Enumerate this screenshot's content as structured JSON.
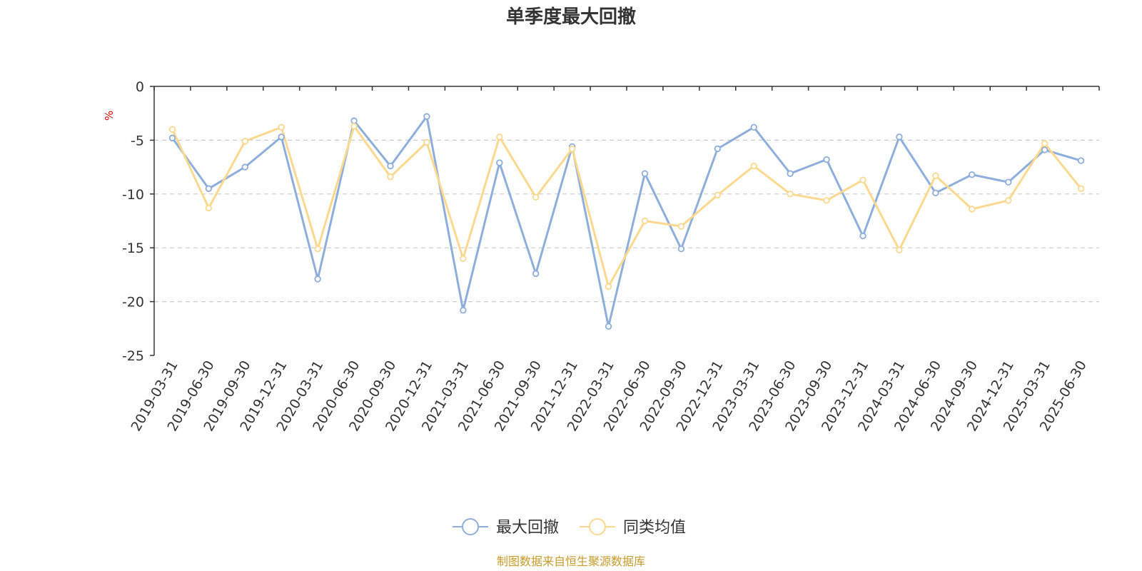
{
  "chart_data": {
    "type": "line",
    "title": "单季度最大回撤",
    "ylabel": "%",
    "ylim": [
      -25,
      0
    ],
    "yticks": [
      0,
      -5,
      -10,
      -15,
      -20,
      -25
    ],
    "grid": true,
    "legend_position": "bottom",
    "categories": [
      "2019-03-31",
      "2019-06-30",
      "2019-09-30",
      "2019-12-31",
      "2020-03-31",
      "2020-06-30",
      "2020-09-30",
      "2020-12-31",
      "2021-03-31",
      "2021-06-30",
      "2021-09-30",
      "2021-12-31",
      "2022-03-31",
      "2022-06-30",
      "2022-09-30",
      "2022-12-31",
      "2023-03-31",
      "2023-06-30",
      "2023-09-30",
      "2023-12-31",
      "2024-03-31",
      "2024-06-30",
      "2024-09-30",
      "2024-12-31",
      "2025-03-31",
      "2025-06-30"
    ],
    "series": [
      {
        "name": "最大回撤",
        "color": "#8eaedb",
        "values": [
          -4.8,
          -9.5,
          -7.5,
          -4.7,
          -17.9,
          -3.2,
          -7.4,
          -2.8,
          -20.8,
          -7.1,
          -17.4,
          -5.6,
          -22.3,
          -8.1,
          -15.1,
          -5.8,
          -3.8,
          -8.1,
          -6.8,
          -13.9,
          -4.7,
          -9.9,
          -8.2,
          -8.9,
          -5.9,
          -6.9
        ]
      },
      {
        "name": "同类均值",
        "color": "#fcd98f",
        "values": [
          -4.0,
          -11.3,
          -5.1,
          -3.8,
          -15.1,
          -3.7,
          -8.4,
          -5.2,
          -16.0,
          -4.7,
          -10.3,
          -5.8,
          -18.6,
          -12.5,
          -13.0,
          -10.1,
          -7.4,
          -10.0,
          -10.6,
          -8.7,
          -15.2,
          -8.3,
          -11.4,
          -10.6,
          -5.3,
          -9.5
        ]
      }
    ],
    "source_note": "制图数据来自恒生聚源数据库"
  }
}
